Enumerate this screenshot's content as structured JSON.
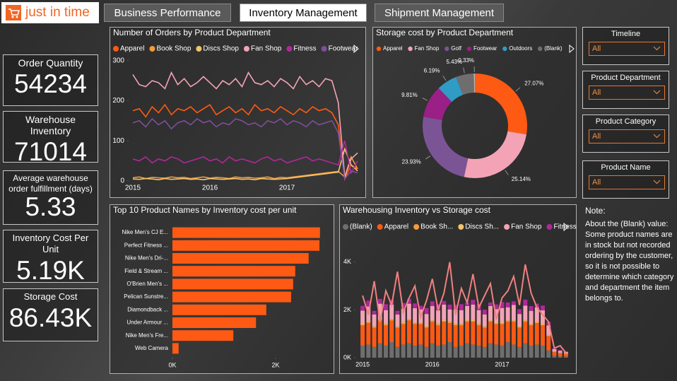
{
  "header": {
    "logo": "just in time",
    "tabs": [
      "Business Performance",
      "Inventory Management",
      "Shipment Management"
    ],
    "active_tab": 1
  },
  "kpis": [
    {
      "label": "Order Quantity",
      "value": "54234"
    },
    {
      "label": "Warehouse Inventory",
      "value": "71014"
    },
    {
      "label": "Average warehouse order fulfillment (days)",
      "value": "5.33"
    },
    {
      "label": "Inventory Cost Per Unit",
      "value": "5.19K"
    },
    {
      "label": "Storage Cost",
      "value": "86.43K"
    }
  ],
  "filters": [
    {
      "label": "Timeline",
      "value": "All"
    },
    {
      "label": "Product Department",
      "value": "All"
    },
    {
      "label": "Product Category",
      "value": "All"
    },
    {
      "label": "Product Name",
      "value": "All"
    }
  ],
  "note": {
    "title": "Note:",
    "text": "About the (Blank) value: Some product names are in stock but not recorded ordering by the customer, so it is not possible to determine which category and department the item belongs to."
  },
  "chart_data": [
    {
      "type": "line",
      "title": "Number of Orders by Product Department",
      "categories": [
        "2015",
        null,
        null,
        null,
        null,
        null,
        null,
        null,
        null,
        null,
        null,
        null,
        "2016",
        null,
        null,
        null,
        null,
        null,
        null,
        null,
        null,
        null,
        null,
        null,
        "2017",
        null,
        null,
        null,
        null,
        null,
        null,
        null,
        null,
        null,
        null,
        null
      ],
      "ylim": [
        0,
        310
      ],
      "yticks": [
        0,
        100,
        200,
        300
      ],
      "series": [
        {
          "name": "Apparel",
          "color": "#ff5a14",
          "values": [
            175,
            180,
            160,
            185,
            170,
            190,
            165,
            180,
            175,
            185,
            170,
            180,
            190,
            165,
            175,
            185,
            170,
            180,
            165,
            190,
            175,
            180,
            170,
            185,
            175,
            165,
            180,
            170,
            185,
            175,
            180,
            170,
            140,
            5,
            40,
            30
          ]
        },
        {
          "name": "Book Shop",
          "color": "#f59a3c",
          "values": [
            8,
            10,
            6,
            9,
            8,
            7,
            10,
            8,
            9,
            6,
            8,
            10,
            7,
            9,
            8,
            6,
            10,
            8,
            9,
            7,
            8,
            10,
            6,
            9,
            8,
            10,
            12,
            14,
            16,
            18,
            20,
            22,
            24,
            10,
            60,
            30
          ]
        },
        {
          "name": "Discs Shop",
          "color": "#f3c46a",
          "values": [
            5,
            4,
            6,
            5,
            3,
            6,
            4,
            5,
            6,
            4,
            5,
            3,
            6,
            5,
            4,
            5,
            6,
            4,
            5,
            3,
            6,
            5,
            4,
            5,
            6,
            8,
            10,
            12,
            14,
            16,
            18,
            20,
            22,
            80,
            40,
            25
          ]
        },
        {
          "name": "Fan Shop",
          "color": "#f4a3b6",
          "values": [
            265,
            240,
            235,
            250,
            245,
            230,
            270,
            240,
            255,
            235,
            245,
            260,
            245,
            230,
            250,
            240,
            255,
            235,
            270,
            245,
            240,
            250,
            235,
            255,
            245,
            230,
            260,
            240,
            250,
            235,
            255,
            250,
            195,
            10,
            55,
            70
          ]
        },
        {
          "name": "Fitness",
          "color": "#b0289a",
          "values": [
            55,
            50,
            60,
            45,
            55,
            50,
            60,
            55,
            45,
            50,
            55,
            60,
            50,
            55,
            45,
            60,
            50,
            55,
            50,
            45,
            55,
            60,
            50,
            55,
            45,
            50,
            55,
            60,
            50,
            55,
            50,
            45,
            40,
            100,
            20,
            50
          ]
        },
        {
          "name": "Footwear",
          "color": "#7d4f9c",
          "values": [
            145,
            150,
            135,
            155,
            140,
            150,
            130,
            145,
            150,
            140,
            155,
            145,
            150,
            135,
            145,
            140,
            155,
            150,
            140,
            145,
            135,
            150,
            145,
            155,
            140,
            150,
            145,
            135,
            150,
            140,
            145,
            150,
            120,
            5,
            25,
            20
          ]
        }
      ]
    },
    {
      "type": "donut",
      "title": "Storage cost by Product Department",
      "categories": [
        "Apparel",
        "Fan Shop",
        "Golf",
        "Footwear",
        "Outdoors",
        "(Blank)",
        null
      ],
      "values": [
        27.07,
        25.14,
        23.93,
        9.81,
        6.19,
        5.43,
        0.33
      ],
      "value_labels": [
        "27.07%",
        "25.14%",
        "23.93%",
        "9.81%",
        "6.19%",
        "5.43%",
        "0.33%"
      ],
      "colors": [
        "#ff5a14",
        "#f4a3b6",
        "#7b5496",
        "#9a1f86",
        "#2f9cc5",
        "#6e6e6e",
        "#b5b5b5"
      ]
    },
    {
      "type": "bar",
      "orientation": "horizontal",
      "title": "Top 10 Product Names by Inventory cost per unit",
      "categories": [
        "Nike Men's CJ E...",
        "Perfect Fitness ...",
        "Nike Men's Dri-...",
        "Field & Stream ...",
        "O'Brien Men's ...",
        "Pelican Sunstre...",
        "Diamondback ...",
        "Under Armour ...",
        "Nike Men's Fre...",
        "Web Camera"
      ],
      "values": [
        2860,
        2850,
        2640,
        2380,
        2340,
        2300,
        1820,
        1620,
        1180,
        120
      ],
      "color": "#ff5a14",
      "xlim": [
        0,
        3100
      ],
      "xticks": [
        {
          "value": 0,
          "label": "0K"
        },
        {
          "value": 2000,
          "label": "2K"
        }
      ]
    },
    {
      "type": "combo",
      "title": "Warehousing Inventory vs Storage cost",
      "categories": [
        "2015",
        null,
        null,
        null,
        null,
        null,
        null,
        null,
        null,
        null,
        null,
        null,
        "2016",
        null,
        null,
        null,
        null,
        null,
        null,
        null,
        null,
        null,
        null,
        null,
        "2017",
        null,
        null,
        null,
        null,
        null,
        null,
        null,
        null,
        null,
        null,
        null
      ],
      "ylim": [
        0,
        5000
      ],
      "yticks": [
        {
          "value": 0,
          "label": "0K"
        },
        {
          "value": 2000,
          "label": "2K"
        },
        {
          "value": 4000,
          "label": "4K"
        }
      ],
      "series": [
        {
          "name": "(Blank)",
          "color": "#6e6e6e",
          "values": [
            500,
            550,
            450,
            600,
            500,
            650,
            450,
            550,
            600,
            500,
            550,
            450,
            600,
            500,
            550,
            650,
            450,
            500,
            600,
            550,
            500,
            450,
            600,
            550,
            500,
            650,
            550,
            450,
            600,
            500,
            550,
            500,
            300,
            80,
            60,
            50
          ]
        },
        {
          "name": "Apparel",
          "color": "#ff5a14",
          "values": [
            850,
            900,
            800,
            950,
            850,
            900,
            800,
            850,
            950,
            900,
            850,
            800,
            900,
            850,
            950,
            800,
            900,
            850,
            900,
            950,
            850,
            800,
            900,
            850,
            900,
            850,
            950,
            800,
            900,
            850,
            900,
            850,
            600,
            150,
            120,
            100
          ]
        },
        {
          "name": "Book Sh...",
          "color": "#f59a3c",
          "values": [
            40,
            50,
            30,
            40,
            50,
            40,
            30,
            50,
            40,
            40,
            30,
            50,
            40,
            50,
            30,
            40,
            40,
            50,
            30,
            40,
            50,
            40,
            30,
            40,
            50,
            40,
            30,
            40,
            50,
            40,
            30,
            40,
            30,
            20,
            20,
            20
          ]
        },
        {
          "name": "Discs Sh...",
          "color": "#f3c46a",
          "values": [
            30,
            40,
            30,
            20,
            40,
            30,
            30,
            40,
            20,
            30,
            40,
            30,
            20,
            30,
            40,
            30,
            20,
            40,
            30,
            30,
            40,
            20,
            30,
            40,
            30,
            20,
            30,
            40,
            30,
            20,
            30,
            40,
            20,
            10,
            10,
            10
          ]
        },
        {
          "name": "Fan Shop",
          "color": "#f4a3b6",
          "values": [
            550,
            600,
            500,
            650,
            550,
            600,
            500,
            550,
            650,
            600,
            550,
            500,
            600,
            550,
            650,
            500,
            600,
            550,
            600,
            650,
            550,
            500,
            600,
            550,
            600,
            550,
            650,
            500,
            600,
            550,
            600,
            550,
            400,
            100,
            80,
            60
          ]
        },
        {
          "name": "Fitness",
          "color": "#b0289a",
          "values": [
            200,
            250,
            150,
            200,
            250,
            200,
            150,
            250,
            200,
            200,
            150,
            250,
            200,
            250,
            150,
            200,
            200,
            250,
            150,
            200,
            250,
            200,
            150,
            200,
            250,
            200,
            150,
            200,
            250,
            200,
            150,
            200,
            150,
            40,
            30,
            30
          ]
        }
      ],
      "line": {
        "color": "#f08080",
        "values": [
          2600,
          1800,
          3200,
          1500,
          2800,
          2200,
          3600,
          1900,
          2500,
          3000,
          1700,
          2400,
          3300,
          2000,
          2700,
          4000,
          1800,
          2900,
          2300,
          3500,
          2100,
          2600,
          3100,
          1600,
          2500,
          2800,
          3400,
          2200,
          3900,
          2700,
          2100,
          1800,
          1500,
          400,
          500,
          200
        ]
      }
    }
  ]
}
